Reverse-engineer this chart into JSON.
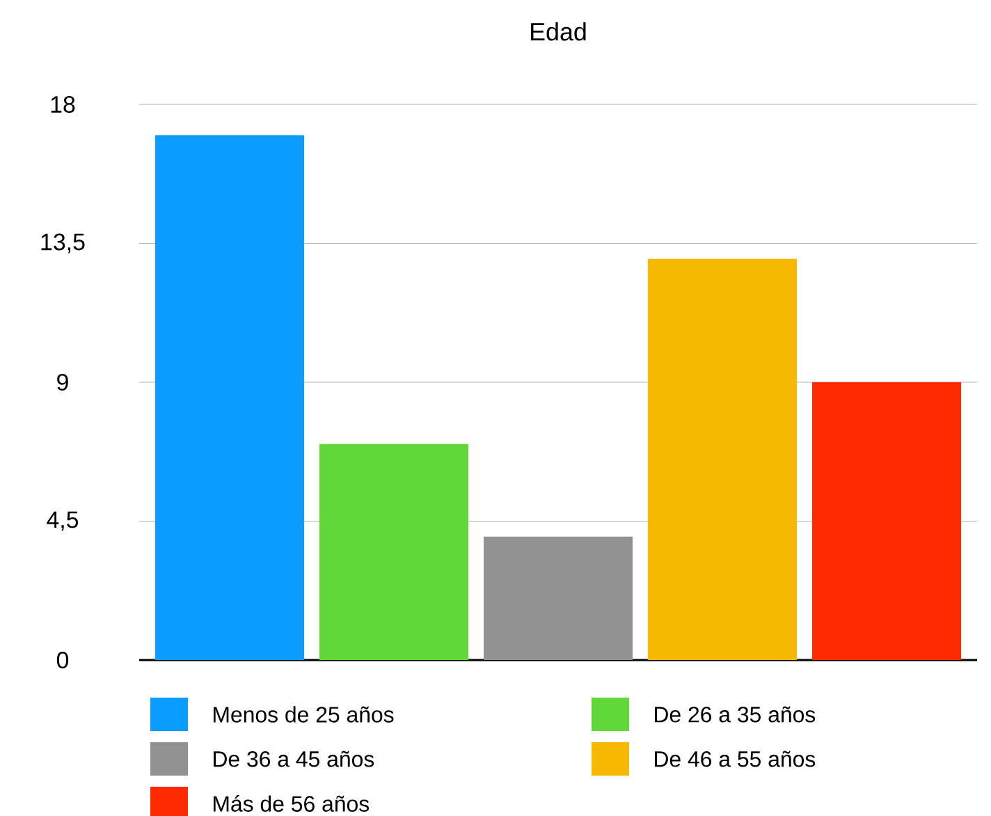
{
  "chart_data": {
    "type": "bar",
    "title": "Edad",
    "categories": [
      null
    ],
    "series": [
      {
        "name": "Menos de 25 años",
        "color": "#0a9dff",
        "values": [
          17
        ]
      },
      {
        "name": "De 26 a 35 años",
        "color": "#60d83a",
        "values": [
          7
        ]
      },
      {
        "name": "De 36 a 45 años",
        "color": "#929292",
        "values": [
          4
        ]
      },
      {
        "name": "De 46 a 55 años",
        "color": "#f7b900",
        "values": [
          13
        ]
      },
      {
        "name": "Más de 56 años",
        "color": "#ff2a00",
        "values": [
          9
        ]
      }
    ],
    "ylim": [
      0,
      18
    ],
    "yticks": [
      0,
      {
        "value": 4.5,
        "label": "4,5"
      },
      9,
      {
        "value": 13.5,
        "label": "13,5"
      },
      18
    ],
    "grid": "y",
    "legend": "bottom"
  }
}
